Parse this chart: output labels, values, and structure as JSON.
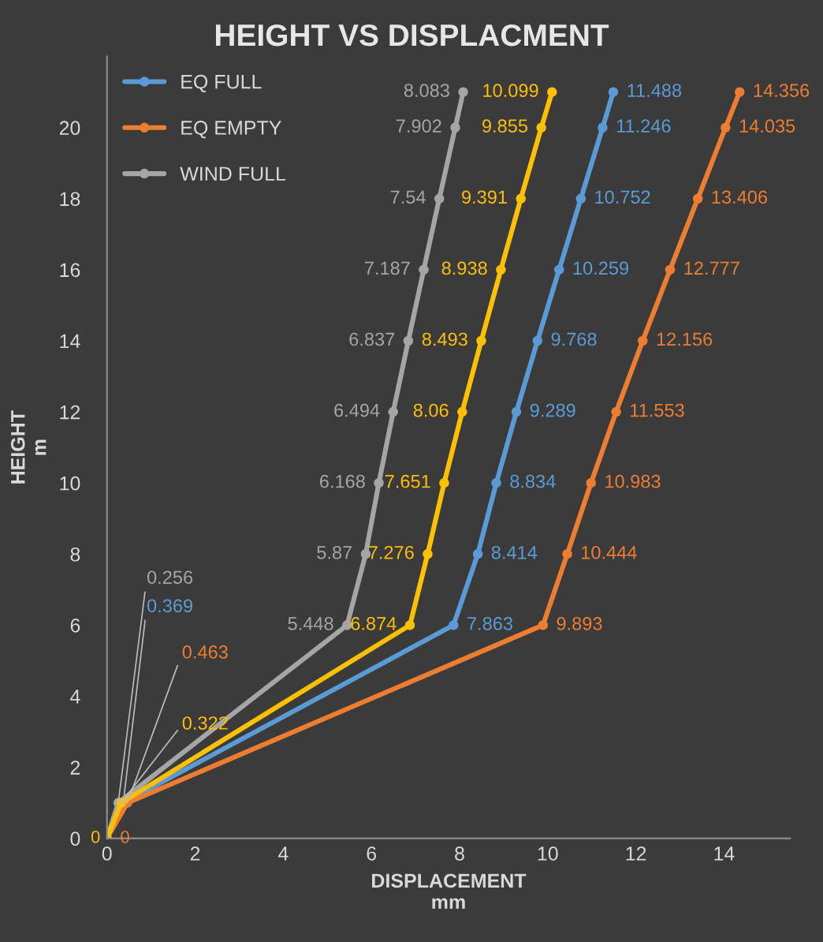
{
  "chart_data": {
    "type": "line",
    "orientation": "horizontal",
    "title": "HEIGHT VS DISPLACMENT",
    "xlabel": "DISPLACEMENT\nmm",
    "ylabel": "HEIGHT\nm",
    "xlim": [
      0,
      15.5
    ],
    "xticks": [
      0,
      2,
      4,
      6,
      8,
      10,
      12,
      14
    ],
    "ylim": [
      0,
      22
    ],
    "yticks": [
      0,
      2,
      4,
      6,
      8,
      10,
      12,
      14,
      16,
      18,
      20
    ],
    "grid": false,
    "legend": "top left",
    "marker": "circle",
    "line_style": "solid",
    "series": [
      {
        "name": "EQ FULL",
        "color": "#5b9bd5",
        "x": [
          0,
          1,
          6,
          8,
          10,
          12,
          14,
          16,
          18,
          20,
          21
        ],
        "values": [
          0,
          0.369,
          7.863,
          8.414,
          8.834,
          9.289,
          9.768,
          10.259,
          10.752,
          11.246,
          11.488
        ],
        "value_labels": [
          null,
          "0.369",
          "7.863",
          "8.414",
          "8.834",
          "9.289",
          "9.768",
          "10.259",
          "10.752",
          "11.246",
          "11.488"
        ]
      },
      {
        "name": "EQ EMPTY",
        "color": "#ed7d31",
        "x": [
          0,
          1,
          6,
          8,
          10,
          12,
          14,
          16,
          18,
          20,
          21
        ],
        "values": [
          0,
          0.463,
          9.893,
          10.444,
          10.983,
          11.553,
          12.156,
          12.777,
          13.406,
          14.035,
          14.356
        ],
        "value_labels": [
          "0",
          "0.463",
          "9.893",
          "10.444",
          "10.983",
          "11.553",
          "12.156",
          "12.777",
          "13.406",
          "14.035",
          "14.356"
        ]
      },
      {
        "name": "WIND FULL",
        "color": "#a5a5a5",
        "x": [
          0,
          1,
          6,
          8,
          10,
          12,
          14,
          16,
          18,
          20,
          21
        ],
        "values": [
          0,
          0.256,
          5.448,
          5.87,
          6.168,
          6.494,
          6.837,
          7.187,
          7.54,
          7.902,
          8.083
        ],
        "value_labels": [
          null,
          "0.256",
          "5.448",
          "5.87",
          "6.168",
          "6.494",
          "6.837",
          "7.187",
          "7.54",
          "7.902",
          "8.083"
        ]
      },
      {
        "color": "#ffc000",
        "x": [
          0,
          1,
          6,
          8,
          10,
          12,
          14,
          16,
          18,
          20,
          21
        ],
        "values": [
          0,
          0.322,
          6.874,
          7.276,
          7.651,
          8.06,
          8.493,
          8.938,
          9.391,
          9.855,
          10.099
        ],
        "value_labels": [
          "0",
          "0.322",
          "6.874",
          "7.276",
          "7.651",
          "8.06",
          "8.493",
          "8.938",
          "9.391",
          "9.855",
          "10.099"
        ]
      }
    ]
  }
}
